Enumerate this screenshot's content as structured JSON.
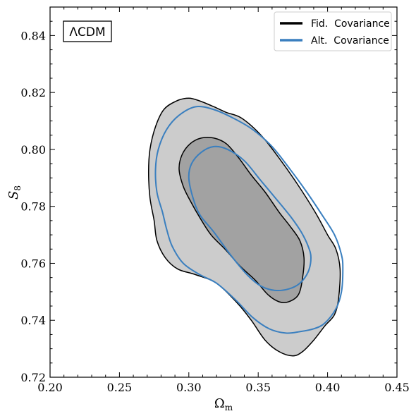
{
  "chart_data": {
    "type": "contour",
    "annotation": "ΛCDM",
    "xlabel": "Ωm",
    "xlabel_main": "Ω",
    "xlabel_sub": "m",
    "ylabel": "S8",
    "ylabel_main": "S",
    "ylabel_sub": "8",
    "xlim": [
      0.2,
      0.45
    ],
    "ylim": [
      0.72,
      0.85
    ],
    "xticks": [
      0.2,
      0.25,
      0.3,
      0.35,
      0.4,
      0.45
    ],
    "xtick_labels": [
      "0.20",
      "0.25",
      "0.30",
      "0.35",
      "0.40",
      "0.45"
    ],
    "yticks": [
      0.72,
      0.74,
      0.76,
      0.78,
      0.8,
      0.82,
      0.84
    ],
    "ytick_labels": [
      "0.72",
      "0.74",
      "0.76",
      "0.78",
      "0.80",
      "0.82",
      "0.84"
    ],
    "legend": {
      "position": "top-right",
      "entries": [
        {
          "label": "Fid.  Covariance",
          "color": "#000000"
        },
        {
          "label": "Alt.  Covariance",
          "color": "#3a7fbf"
        }
      ]
    },
    "contours": [
      {
        "series": "Fid. Covariance",
        "level": "95%",
        "fill": "#cccccc",
        "stroke": "#000000",
        "points": [
          [
            0.277,
            0.768
          ],
          [
            0.275,
            0.775
          ],
          [
            0.272,
            0.783
          ],
          [
            0.271,
            0.792
          ],
          [
            0.272,
            0.8
          ],
          [
            0.276,
            0.808
          ],
          [
            0.282,
            0.814
          ],
          [
            0.291,
            0.817
          ],
          [
            0.3,
            0.818
          ],
          [
            0.308,
            0.817
          ],
          [
            0.318,
            0.815
          ],
          [
            0.327,
            0.813
          ],
          [
            0.338,
            0.811
          ],
          [
            0.352,
            0.805
          ],
          [
            0.365,
            0.797
          ],
          [
            0.378,
            0.788
          ],
          [
            0.391,
            0.778
          ],
          [
            0.4,
            0.77
          ],
          [
            0.406,
            0.765
          ],
          [
            0.409,
            0.758
          ],
          [
            0.408,
            0.748
          ],
          [
            0.405,
            0.742
          ],
          [
            0.398,
            0.738
          ],
          [
            0.39,
            0.733
          ],
          [
            0.382,
            0.729
          ],
          [
            0.375,
            0.7275
          ],
          [
            0.365,
            0.729
          ],
          [
            0.355,
            0.733
          ],
          [
            0.345,
            0.74
          ],
          [
            0.335,
            0.746
          ],
          [
            0.32,
            0.753
          ],
          [
            0.305,
            0.756
          ],
          [
            0.292,
            0.758
          ],
          [
            0.283,
            0.762
          ]
        ]
      },
      {
        "series": "Fid. Covariance",
        "level": "68%",
        "fill": "#a2a2a2",
        "stroke": "#000000",
        "points": [
          [
            0.301,
            0.782
          ],
          [
            0.296,
            0.787
          ],
          [
            0.293,
            0.793
          ],
          [
            0.295,
            0.798
          ],
          [
            0.301,
            0.802
          ],
          [
            0.309,
            0.804
          ],
          [
            0.318,
            0.804
          ],
          [
            0.327,
            0.802
          ],
          [
            0.336,
            0.797
          ],
          [
            0.345,
            0.791
          ],
          [
            0.355,
            0.785
          ],
          [
            0.365,
            0.778
          ],
          [
            0.373,
            0.773
          ],
          [
            0.38,
            0.768
          ],
          [
            0.383,
            0.762
          ],
          [
            0.382,
            0.755
          ],
          [
            0.379,
            0.749
          ],
          [
            0.372,
            0.7465
          ],
          [
            0.365,
            0.7465
          ],
          [
            0.357,
            0.749
          ],
          [
            0.348,
            0.754
          ],
          [
            0.337,
            0.759
          ],
          [
            0.326,
            0.765
          ],
          [
            0.316,
            0.77
          ],
          [
            0.308,
            0.776
          ]
        ]
      },
      {
        "series": "Alt. Covariance",
        "level": "95%",
        "fill": "none",
        "stroke": "#3a7fbf",
        "points": [
          [
            0.281,
            0.778
          ],
          [
            0.277,
            0.785
          ],
          [
            0.276,
            0.793
          ],
          [
            0.278,
            0.8
          ],
          [
            0.284,
            0.807
          ],
          [
            0.293,
            0.812
          ],
          [
            0.305,
            0.815
          ],
          [
            0.318,
            0.814
          ],
          [
            0.332,
            0.811
          ],
          [
            0.346,
            0.807
          ],
          [
            0.36,
            0.801
          ],
          [
            0.373,
            0.793
          ],
          [
            0.385,
            0.785
          ],
          [
            0.396,
            0.777
          ],
          [
            0.405,
            0.77
          ],
          [
            0.41,
            0.763
          ],
          [
            0.411,
            0.758
          ],
          [
            0.41,
            0.75
          ],
          [
            0.406,
            0.744
          ],
          [
            0.398,
            0.739
          ],
          [
            0.39,
            0.737
          ],
          [
            0.38,
            0.736
          ],
          [
            0.37,
            0.7355
          ],
          [
            0.358,
            0.737
          ],
          [
            0.346,
            0.741
          ],
          [
            0.334,
            0.747
          ],
          [
            0.32,
            0.753
          ],
          [
            0.308,
            0.756
          ],
          [
            0.296,
            0.76
          ],
          [
            0.288,
            0.766
          ],
          [
            0.284,
            0.772
          ]
        ]
      },
      {
        "series": "Alt. Covariance",
        "level": "68%",
        "fill": "none",
        "stroke": "#3a7fbf",
        "points": [
          [
            0.303,
            0.783
          ],
          [
            0.3,
            0.79
          ],
          [
            0.302,
            0.795
          ],
          [
            0.309,
            0.799
          ],
          [
            0.318,
            0.801
          ],
          [
            0.328,
            0.8
          ],
          [
            0.34,
            0.796
          ],
          [
            0.352,
            0.789
          ],
          [
            0.364,
            0.782
          ],
          [
            0.374,
            0.776
          ],
          [
            0.381,
            0.771
          ],
          [
            0.386,
            0.766
          ],
          [
            0.388,
            0.762
          ],
          [
            0.386,
            0.757
          ],
          [
            0.38,
            0.753
          ],
          [
            0.372,
            0.751
          ],
          [
            0.362,
            0.7505
          ],
          [
            0.352,
            0.752
          ],
          [
            0.342,
            0.756
          ],
          [
            0.33,
            0.763
          ],
          [
            0.318,
            0.771
          ],
          [
            0.308,
            0.777
          ]
        ]
      }
    ]
  }
}
